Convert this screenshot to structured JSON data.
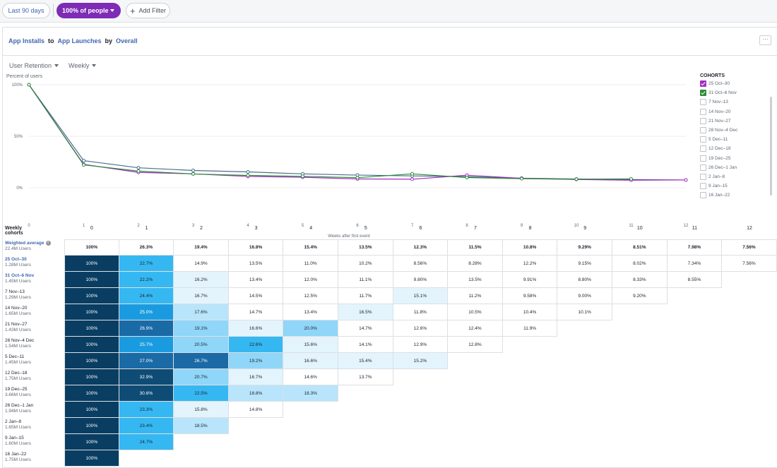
{
  "toolbar": {
    "date_label": "Last 90 days",
    "people_label": "100% of people",
    "filter_label": "Add Filter"
  },
  "title": {
    "from": "App Installs",
    "to_word": "to",
    "to": "App Launches",
    "by_word": "by",
    "by": "Overall",
    "more": "···"
  },
  "controls": {
    "metric": "User Retention",
    "period": "Weekly"
  },
  "chart_data": {
    "type": "line",
    "ylabel": "Percent of users",
    "xlabel": "Weeks after first event",
    "x": [
      0,
      1,
      2,
      3,
      4,
      5,
      6,
      7,
      8,
      9,
      10,
      11,
      12
    ],
    "yticks": [
      "100%",
      "50%",
      "0%"
    ],
    "ylim": [
      0,
      100
    ],
    "series": [
      {
        "name": "Weighted average",
        "color": "#4a6d8c",
        "values": [
          100,
          26.3,
          19.4,
          16.8,
          15.4,
          13.5,
          12.3,
          11.5,
          10.8,
          9.29,
          8.51,
          7.98,
          7.56
        ]
      },
      {
        "name": "25 Oct–30",
        "color": "#a030c0",
        "values": [
          100,
          22.7,
          14.9,
          13.5,
          11.0,
          10.2,
          8.56,
          8.28,
          12.2,
          9.15,
          8.02,
          7.34,
          7.56
        ]
      },
      {
        "name": "31 Oct–6 Nov",
        "color": "#2e8b3a",
        "values": [
          100,
          22.2,
          16.2,
          13.4,
          12.0,
          11.1,
          9.8,
          13.5,
          9.91,
          8.8,
          8.33,
          8.55,
          null
        ]
      }
    ]
  },
  "cohorts_legend": {
    "title": "COHORTS",
    "items": [
      {
        "label": "25 Oct–30",
        "checked": true,
        "color": "#a030c0"
      },
      {
        "label": "31 Oct–6 Nov",
        "checked": true,
        "color": "#2e8b3a"
      },
      {
        "label": "7 Nov–13",
        "checked": false
      },
      {
        "label": "14 Nov–20",
        "checked": false
      },
      {
        "label": "21 Nov–27",
        "checked": false
      },
      {
        "label": "28 Nov–4 Dec",
        "checked": false
      },
      {
        "label": "5 Dec–11",
        "checked": false
      },
      {
        "label": "12 Dec–18",
        "checked": false
      },
      {
        "label": "19 Dec–25",
        "checked": false
      },
      {
        "label": "26 Dec–1 Jan",
        "checked": false
      },
      {
        "label": "2 Jan–8",
        "checked": false
      },
      {
        "label": "9 Jan–15",
        "checked": false
      },
      {
        "label": "16 Jan–22",
        "checked": false
      }
    ]
  },
  "table": {
    "header_label": "Weekly cohorts",
    "columns": [
      "0",
      "1",
      "2",
      "3",
      "4",
      "5",
      "6",
      "7",
      "8",
      "9",
      "10",
      "11",
      "12"
    ],
    "average": {
      "name": "Weighted average",
      "users": "22.4M Users",
      "values": [
        "100%",
        "26.3%",
        "19.4%",
        "16.8%",
        "15.4%",
        "13.5%",
        "12.3%",
        "11.5%",
        "10.8%",
        "9.29%",
        "8.51%",
        "7.98%",
        "7.56%"
      ]
    },
    "rows": [
      {
        "name": "25 Oct–30",
        "users": "1.28M Users",
        "highlight": true,
        "values": [
          "100%",
          "22.7%",
          "14.9%",
          "13.5%",
          "11.0%",
          "10.2%",
          "8.56%",
          "8.28%",
          "12.2%",
          "9.15%",
          "8.02%",
          "7.34%",
          "7.56%"
        ]
      },
      {
        "name": "31 Oct–6 Nov",
        "users": "1.45M Users",
        "highlight": true,
        "values": [
          "100%",
          "22.2%",
          "16.2%",
          "13.4%",
          "12.0%",
          "11.1%",
          "9.80%",
          "13.5%",
          "9.91%",
          "8.80%",
          "8.33%",
          "8.55%"
        ]
      },
      {
        "name": "7 Nov–13",
        "users": "1.29M Users",
        "values": [
          "100%",
          "24.4%",
          "16.7%",
          "14.5%",
          "12.5%",
          "11.7%",
          "15.1%",
          "11.2%",
          "9.58%",
          "9.00%",
          "9.20%"
        ]
      },
      {
        "name": "14 Nov–20",
        "users": "1.65M Users",
        "values": [
          "100%",
          "25.0%",
          "17.6%",
          "14.7%",
          "13.4%",
          "16.5%",
          "11.8%",
          "10.5%",
          "10.4%",
          "10.1%"
        ]
      },
      {
        "name": "21 Nov–27",
        "users": "1.43M Users",
        "values": [
          "100%",
          "26.9%",
          "19.1%",
          "16.6%",
          "20.0%",
          "14.7%",
          "12.6%",
          "12.4%",
          "11.9%"
        ]
      },
      {
        "name": "28 Nov–4 Dec",
        "users": "1.54M Users",
        "values": [
          "100%",
          "25.7%",
          "20.5%",
          "22.6%",
          "15.6%",
          "14.1%",
          "12.9%",
          "12.8%"
        ]
      },
      {
        "name": "5 Dec–11",
        "users": "1.45M Users",
        "values": [
          "100%",
          "27.0%",
          "26.7%",
          "19.2%",
          "16.6%",
          "15.4%",
          "15.2%"
        ]
      },
      {
        "name": "12 Dec–18",
        "users": "1.75M Users",
        "values": [
          "100%",
          "32.9%",
          "20.7%",
          "16.7%",
          "14.6%",
          "13.7%"
        ]
      },
      {
        "name": "19 Dec–25",
        "users": "3.66M Users",
        "values": [
          "100%",
          "30.6%",
          "22.5%",
          "18.8%",
          "18.3%"
        ]
      },
      {
        "name": "26 Dec–1 Jan",
        "users": "1.94M Users",
        "values": [
          "100%",
          "23.3%",
          "15.8%",
          "14.8%"
        ]
      },
      {
        "name": "2 Jan–8",
        "users": "1.65M Users",
        "values": [
          "100%",
          "23.4%",
          "18.5%"
        ]
      },
      {
        "name": "9 Jan–15",
        "users": "1.60M Users",
        "values": [
          "100%",
          "24.7%"
        ]
      },
      {
        "name": "16 Jan–22",
        "users": "1.75M Users",
        "values": [
          "100%"
        ]
      }
    ]
  }
}
